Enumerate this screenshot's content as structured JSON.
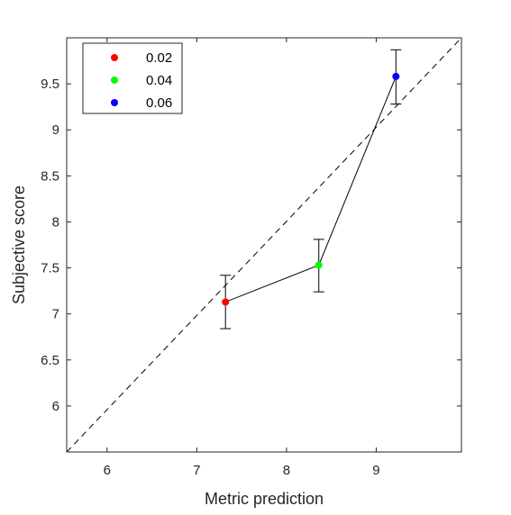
{
  "chart_data": {
    "type": "scatter",
    "title": "",
    "xlabel": "Metric prediction",
    "ylabel": "Subjective score",
    "xlim": [
      5.55,
      9.95
    ],
    "ylim": [
      5.5,
      10.0
    ],
    "xticks": [
      6,
      7,
      8,
      9
    ],
    "yticks": [
      6,
      6.5,
      7,
      7.5,
      8,
      8.5,
      9,
      9.5
    ],
    "grid": false,
    "legend_position": "top-left",
    "reference_line": {
      "style": "dashed",
      "from": [
        5.55,
        5.5
      ],
      "to": [
        9.95,
        10.0
      ],
      "color": "#000000"
    },
    "connecting_line": {
      "color": "#000000"
    },
    "series": [
      {
        "name": "0.02",
        "color": "#ff0000",
        "x": 7.32,
        "y": 7.13,
        "err_low": 6.84,
        "err_high": 7.42
      },
      {
        "name": "0.04",
        "color": "#00ff00",
        "x": 8.36,
        "y": 7.53,
        "err_low": 7.24,
        "err_high": 7.81
      },
      {
        "name": "0.06",
        "color": "#0000ff",
        "x": 9.22,
        "y": 9.58,
        "err_low": 9.28,
        "err_high": 9.87
      }
    ]
  }
}
